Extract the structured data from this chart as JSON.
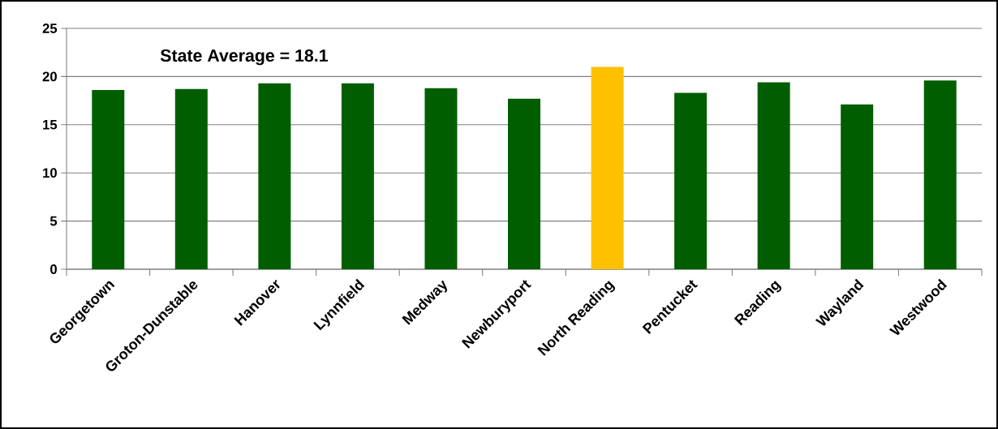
{
  "chart_data": {
    "type": "bar",
    "categories": [
      "Georgetown",
      "Groton-Dunstable",
      "Hanover",
      "Lynnfield",
      "Medway",
      "Newburyport",
      "North Reading",
      "Pentucket",
      "Reading",
      "Wayland",
      "Westwood"
    ],
    "values": [
      18.6,
      18.7,
      19.3,
      19.3,
      18.8,
      17.7,
      21.0,
      18.3,
      19.4,
      17.1,
      19.6
    ],
    "colors": [
      "#005e00",
      "#005e00",
      "#005e00",
      "#005e00",
      "#005e00",
      "#005e00",
      "#ffc000",
      "#005e00",
      "#005e00",
      "#005e00",
      "#005e00"
    ],
    "ylim": [
      0,
      25
    ],
    "yticks": [
      0,
      5,
      10,
      15,
      20,
      25
    ],
    "grid": "y",
    "annotations": [
      "State Average = 18.1"
    ]
  }
}
